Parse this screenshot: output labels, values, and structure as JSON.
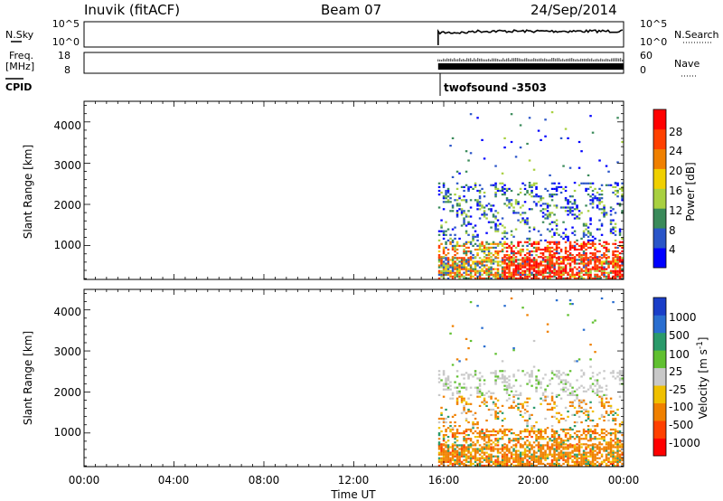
{
  "header": {
    "station": "Inuvik (fitACF)",
    "beam": "Beam 07",
    "date": "24/Sep/2014"
  },
  "panels": {
    "noise": {
      "left_label": "N.Sky",
      "right_label": "N.Search",
      "left_ticks": [
        "10^5",
        "10^0"
      ],
      "right_ticks": [
        "10^5",
        "10^0"
      ]
    },
    "freq": {
      "left_label_1": "Freq.",
      "left_label_2": "[MHz]",
      "right_label": "Nave",
      "left_ticks": [
        "18",
        "8"
      ],
      "right_ticks": [
        "60",
        "0"
      ]
    },
    "cpid": {
      "label": "CPID",
      "value": "twofsound -3503"
    }
  },
  "chart_data": [
    {
      "type": "heatmap",
      "title": "",
      "ylabel": "Slant Range [km]",
      "yticks": [
        "1000",
        "2000",
        "3000",
        "4000"
      ],
      "ylim": [
        180,
        4500
      ],
      "colorbar": {
        "label": "Power [dB]",
        "ticks": [
          "4",
          "8",
          "12",
          "16",
          "20",
          "24",
          "28"
        ],
        "range": [
          0,
          32
        ],
        "colors": [
          "#0000ff",
          "#2a55c8",
          "#3a8a5a",
          "#a8d040",
          "#f0d000",
          "#f08000",
          "#ff4000",
          "#ff0000"
        ]
      }
    },
    {
      "type": "heatmap",
      "title": "",
      "ylabel": "Slant Range [km]",
      "yticks": [
        "1000",
        "2000",
        "3000",
        "4000"
      ],
      "ylim": [
        180,
        4500
      ],
      "colorbar": {
        "label": "Velocity [m s^-1]",
        "ticks": [
          "1000",
          "500",
          "100",
          "25",
          "-25",
          "-100",
          "-500",
          "-1000"
        ],
        "colors": [
          "#1a3ec8",
          "#2a6ed0",
          "#2a9a6a",
          "#60c030",
          "#c8c8c8",
          "#f0c000",
          "#f08000",
          "#ff4000",
          "#ff0000"
        ]
      }
    }
  ],
  "xaxis": {
    "label": "Time UT",
    "ticks": [
      "00:00",
      "04:00",
      "08:00",
      "12:00",
      "16:00",
      "20:00",
      "00:00"
    ],
    "data_start_hour": 15.75
  }
}
